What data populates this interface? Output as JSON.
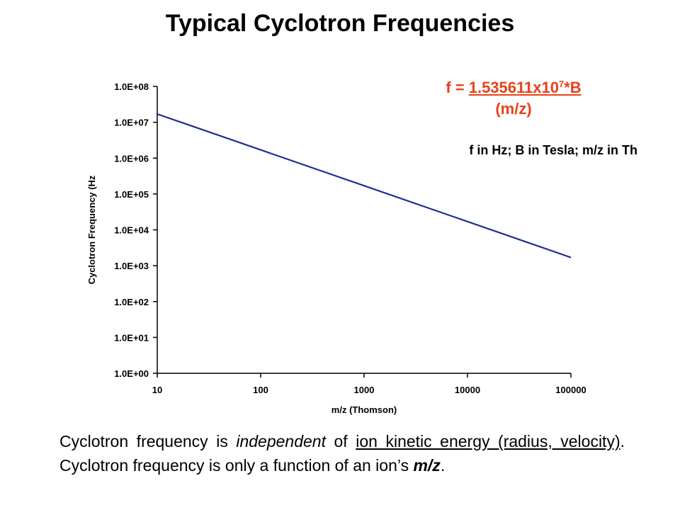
{
  "slide": {
    "title": "Typical Cyclotron Frequencies"
  },
  "formula": {
    "prefix": "f = ",
    "coefficient": "1.535611x10",
    "exponent": "7",
    "numerator_tail": "*B",
    "denominator": "(m/z)"
  },
  "units_note": "f in Hz; B in Tesla; m/z in Th",
  "caption": {
    "part1": "Cyclotron frequency is ",
    "part2_italic": "independent",
    "part3": " of ",
    "part4_underlined": "ion kinetic energy (radius, velocity)",
    "part5": ".  Cyclotron frequency is only a function of an ion’s ",
    "part6_bold_italic": "m/z",
    "part7": "."
  },
  "chart_data": {
    "type": "line",
    "title": "",
    "xlabel": "m/z (Thomson)",
    "ylabel": "Cyclotron Frequency (Hz",
    "x_scale": "log",
    "y_scale": "log",
    "xlim": [
      10,
      100000
    ],
    "ylim": [
      1,
      100000000
    ],
    "x_tick_labels": [
      "10",
      "100",
      "1000",
      "10000",
      "100000"
    ],
    "y_tick_labels": [
      "1.0E+00",
      "1.0E+01",
      "1.0E+02",
      "1.0E+03",
      "1.0E+04",
      "1.0E+05",
      "1.0E+06",
      "1.0E+07",
      "1.0E+08"
    ],
    "grid": false,
    "legend": "none",
    "line_color": "#1f2f8f",
    "series": [
      {
        "x": [
          10,
          100,
          1000,
          10000,
          100000
        ],
        "y": [
          17000000,
          1700000,
          170000,
          17000,
          1700
        ]
      }
    ]
  }
}
